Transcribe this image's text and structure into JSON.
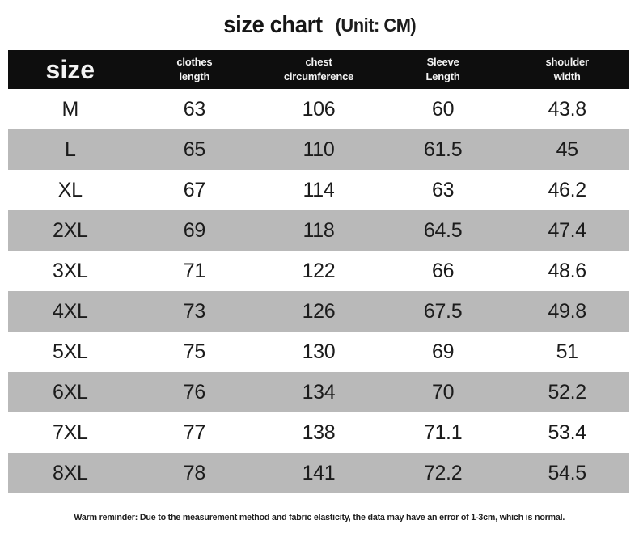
{
  "title": {
    "main": "size chart",
    "unit": "(Unit: CM)"
  },
  "table": {
    "headers": [
      "size",
      "clothes\nlength",
      "chest\ncircumference",
      "Sleeve\nLength",
      "shoulder\nwidth"
    ],
    "rows": [
      [
        "M",
        "63",
        "106",
        "60",
        "43.8"
      ],
      [
        "L",
        "65",
        "110",
        "61.5",
        "45"
      ],
      [
        "XL",
        "67",
        "114",
        "63",
        "46.2"
      ],
      [
        "2XL",
        "69",
        "118",
        "64.5",
        "47.4"
      ],
      [
        "3XL",
        "71",
        "122",
        "66",
        "48.6"
      ],
      [
        "4XL",
        "73",
        "126",
        "67.5",
        "49.8"
      ],
      [
        "5XL",
        "75",
        "130",
        "69",
        "51"
      ],
      [
        "6XL",
        "76",
        "134",
        "70",
        "52.2"
      ],
      [
        "7XL",
        "77",
        "138",
        "71.1",
        "53.4"
      ],
      [
        "8XL",
        "78",
        "141",
        "72.2",
        "54.5"
      ]
    ]
  },
  "footer": {
    "note": "Warm reminder: Due to the measurement method and fabric elasticity, the data may have an error of 1-3cm, which is normal."
  },
  "colors": {
    "header_bg": "#0e0e0e",
    "header_text": "#f4f4f4",
    "alt_row_bg": "#b9b9b9",
    "body_text": "#1b1b1b"
  },
  "chart_data": {
    "type": "table",
    "title": "size chart (Unit: CM)",
    "unit": "CM",
    "columns": [
      "size",
      "clothes length",
      "chest circumference",
      "Sleeve Length",
      "shoulder width"
    ],
    "rows": [
      [
        "M",
        63,
        106,
        60,
        43.8
      ],
      [
        "L",
        65,
        110,
        61.5,
        45
      ],
      [
        "XL",
        67,
        114,
        63,
        46.2
      ],
      [
        "2XL",
        69,
        118,
        64.5,
        47.4
      ],
      [
        "3XL",
        71,
        122,
        66,
        48.6
      ],
      [
        "4XL",
        73,
        126,
        67.5,
        49.8
      ],
      [
        "5XL",
        75,
        130,
        69,
        51
      ],
      [
        "6XL",
        76,
        134,
        70,
        52.2
      ],
      [
        "7XL",
        77,
        138,
        71.1,
        53.4
      ],
      [
        "8XL",
        78,
        141,
        72.2,
        54.5
      ]
    ],
    "note": "Warm reminder: Due to the measurement method and fabric elasticity, the data may have an error of 1-3cm, which is normal.",
    "layout": {
      "alternating_row_shading": true,
      "header_style": "black-bar"
    }
  }
}
